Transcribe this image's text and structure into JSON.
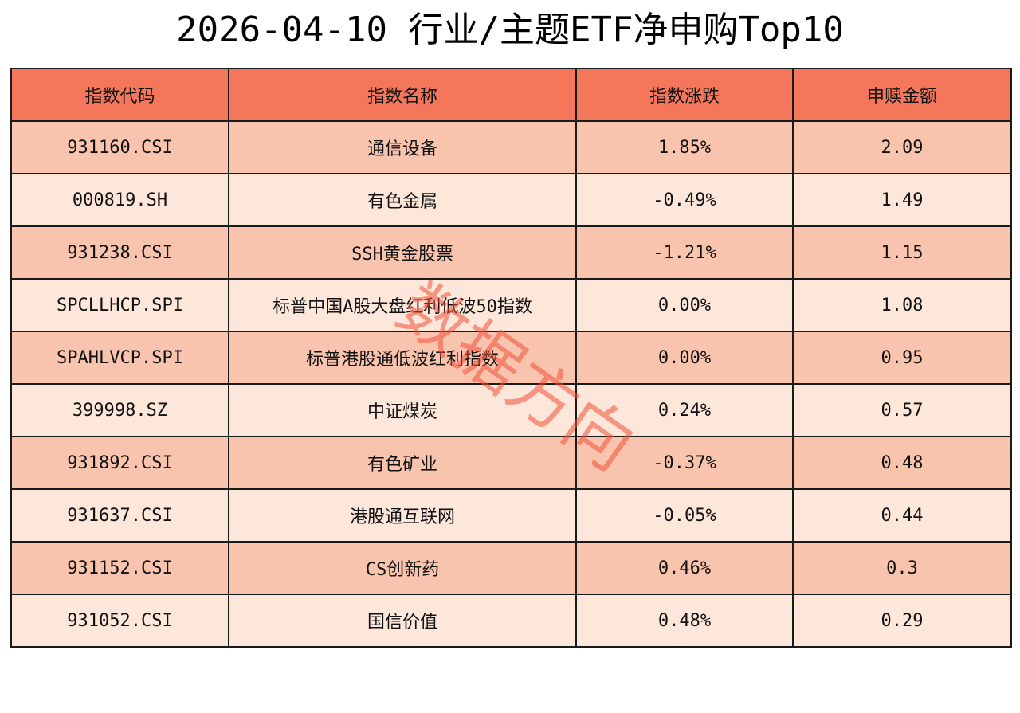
{
  "title": "2026-04-10 行业/主题ETF净申购Top10",
  "watermark": "数据方向",
  "colors": {
    "header_bg": "#f5775b",
    "row_odd": "#f9c4ad",
    "row_even": "#fde6da",
    "watermark": "#f0503a"
  },
  "chart_data": {
    "type": "table",
    "title": "2026-04-10 行业/主题ETF净申购Top10",
    "columns": [
      "指数代码",
      "指数名称",
      "指数涨跌",
      "申赎金额"
    ],
    "rows": [
      [
        "931160.CSI",
        "通信设备",
        "1.85%",
        "2.09"
      ],
      [
        "000819.SH",
        "有色金属",
        "-0.49%",
        "1.49"
      ],
      [
        "931238.CSI",
        "SSH黄金股票",
        "-1.21%",
        "1.15"
      ],
      [
        "SPCLLHCP.SPI",
        "标普中国A股大盘红利低波50指数",
        "0.00%",
        "1.08"
      ],
      [
        "SPAHLVCP.SPI",
        "标普港股通低波红利指数",
        "0.00%",
        "0.95"
      ],
      [
        "399998.SZ",
        "中证煤炭",
        "0.24%",
        "0.57"
      ],
      [
        "931892.CSI",
        "有色矿业",
        "-0.37%",
        "0.48"
      ],
      [
        "931637.CSI",
        "港股通互联网",
        "-0.05%",
        "0.44"
      ],
      [
        "931152.CSI",
        "CS创新药",
        "0.46%",
        "0.3"
      ],
      [
        "931052.CSI",
        "国信价值",
        "0.48%",
        "0.29"
      ]
    ]
  }
}
